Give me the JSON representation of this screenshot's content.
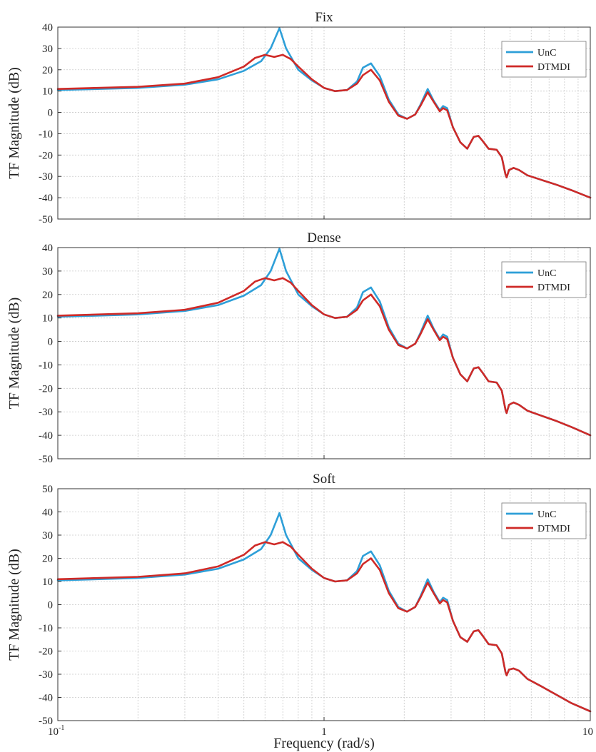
{
  "chart_data": [
    {
      "type": "line",
      "title": "Fix",
      "ylabel": "TF Magnitude (dB)",
      "xlabel": "",
      "xscale": "log",
      "xlim": [
        0.1,
        10
      ],
      "ylim": [
        -50,
        40
      ],
      "yticks": [
        40,
        30,
        20,
        10,
        0,
        -10,
        -20,
        -30,
        -40,
        -50
      ],
      "xticks": [],
      "grid": true,
      "legend": "top-right",
      "series": [
        {
          "name": "UnC",
          "color": "#2e9fd8",
          "x": [
            0.1,
            0.2,
            0.3,
            0.4,
            0.5,
            0.58,
            0.63,
            0.68,
            0.72,
            0.8,
            0.9,
            1.0,
            1.1,
            1.22,
            1.33,
            1.4,
            1.5,
            1.62,
            1.75,
            1.9,
            2.05,
            2.2,
            2.3,
            2.45,
            2.58,
            2.72,
            2.8,
            2.9,
            3.05,
            3.25,
            3.45,
            3.65,
            3.8,
            3.95,
            4.15,
            4.45,
            4.65,
            4.8,
            4.85,
            4.95,
            5.15,
            5.4,
            5.8,
            6.5,
            7.5,
            8.5,
            10.0
          ],
          "y": [
            10.5,
            11.5,
            13,
            15.5,
            19.5,
            24,
            30,
            39.5,
            30,
            20,
            15,
            11.5,
            10,
            10.5,
            14.5,
            21,
            23,
            17,
            6,
            -1,
            -3,
            -1,
            3.5,
            11,
            5.5,
            1,
            3,
            2,
            -7,
            -14,
            -17,
            -11.5,
            -11,
            -13.5,
            -17,
            -17.5,
            -21,
            -29,
            -30.5,
            -27,
            -26,
            -27,
            -29.5,
            -31.5,
            -34,
            -36.5,
            -40
          ]
        },
        {
          "name": "DTMDI",
          "color": "#cf2a27",
          "x": [
            0.1,
            0.2,
            0.3,
            0.4,
            0.5,
            0.55,
            0.6,
            0.65,
            0.7,
            0.75,
            0.8,
            0.9,
            1.0,
            1.1,
            1.22,
            1.33,
            1.4,
            1.5,
            1.62,
            1.75,
            1.9,
            2.05,
            2.2,
            2.3,
            2.45,
            2.58,
            2.72,
            2.8,
            2.9,
            3.05,
            3.25,
            3.45,
            3.65,
            3.8,
            3.95,
            4.15,
            4.45,
            4.65,
            4.8,
            4.85,
            4.95,
            5.15,
            5.4,
            5.8,
            6.5,
            7.5,
            8.5,
            10.0
          ],
          "y": [
            11,
            12,
            13.5,
            16.5,
            21.5,
            25.5,
            27,
            26,
            27,
            25,
            21.5,
            15.5,
            11.5,
            10,
            10.5,
            13.5,
            17.5,
            20,
            15,
            5,
            -1.5,
            -3,
            -1,
            3,
            9.5,
            5,
            0.5,
            2,
            1,
            -7,
            -14,
            -17,
            -11.5,
            -11,
            -13.5,
            -17,
            -17.5,
            -21,
            -29,
            -30.5,
            -27,
            -26,
            -27,
            -29.5,
            -31.5,
            -34,
            -36.5,
            -40
          ]
        }
      ]
    },
    {
      "type": "line",
      "title": "Dense",
      "ylabel": "TF Magnitude (dB)",
      "xlabel": "",
      "xscale": "log",
      "xlim": [
        0.1,
        10
      ],
      "ylim": [
        -50,
        40
      ],
      "yticks": [
        40,
        30,
        20,
        10,
        0,
        -10,
        -20,
        -30,
        -40,
        -50
      ],
      "xticks": [],
      "grid": true,
      "legend": "top-right",
      "series": [
        {
          "name": "UnC",
          "color": "#2e9fd8",
          "x": [
            0.1,
            0.2,
            0.3,
            0.4,
            0.5,
            0.58,
            0.63,
            0.68,
            0.72,
            0.8,
            0.9,
            1.0,
            1.1,
            1.22,
            1.33,
            1.4,
            1.5,
            1.62,
            1.75,
            1.9,
            2.05,
            2.2,
            2.3,
            2.45,
            2.58,
            2.72,
            2.8,
            2.9,
            3.05,
            3.25,
            3.45,
            3.65,
            3.8,
            3.95,
            4.15,
            4.45,
            4.65,
            4.8,
            4.85,
            4.95,
            5.15,
            5.4,
            5.8,
            6.5,
            7.5,
            8.5,
            10.0
          ],
          "y": [
            10.5,
            11.5,
            13,
            15.5,
            19.5,
            24,
            30,
            39.5,
            30,
            20,
            15,
            11.5,
            10,
            10.5,
            14.5,
            21,
            23,
            17,
            6,
            -1,
            -3,
            -1,
            3.5,
            11,
            5.5,
            1,
            3,
            2,
            -7,
            -14,
            -17,
            -11.5,
            -11,
            -13.5,
            -17,
            -17.5,
            -21,
            -29,
            -30.5,
            -27,
            -26,
            -27,
            -29.5,
            -31.5,
            -34,
            -36.5,
            -40
          ]
        },
        {
          "name": "DTMDI",
          "color": "#cf2a27",
          "x": [
            0.1,
            0.2,
            0.3,
            0.4,
            0.5,
            0.55,
            0.6,
            0.65,
            0.7,
            0.75,
            0.8,
            0.9,
            1.0,
            1.1,
            1.22,
            1.33,
            1.4,
            1.5,
            1.62,
            1.75,
            1.9,
            2.05,
            2.2,
            2.3,
            2.45,
            2.58,
            2.72,
            2.8,
            2.9,
            3.05,
            3.25,
            3.45,
            3.65,
            3.8,
            3.95,
            4.15,
            4.45,
            4.65,
            4.8,
            4.85,
            4.95,
            5.15,
            5.4,
            5.8,
            6.5,
            7.5,
            8.5,
            10.0
          ],
          "y": [
            11,
            12,
            13.5,
            16.5,
            21.5,
            25.5,
            27,
            26,
            27,
            25,
            21.5,
            15.5,
            11.5,
            10,
            10.5,
            13.5,
            17.5,
            20,
            15,
            5,
            -1.5,
            -3,
            -1,
            3,
            9.5,
            5,
            0.5,
            2,
            1,
            -7,
            -14,
            -17,
            -11.5,
            -11,
            -13.5,
            -17,
            -17.5,
            -21,
            -29,
            -30.5,
            -27,
            -26,
            -27,
            -29.5,
            -31.5,
            -34,
            -36.5,
            -40
          ]
        }
      ]
    },
    {
      "type": "line",
      "title": "Soft",
      "ylabel": "TF Magnitude (dB)",
      "xlabel": "Frequency (rad/s)",
      "xscale": "log",
      "xlim": [
        0.1,
        10
      ],
      "ylim": [
        -50,
        50
      ],
      "yticks": [
        50,
        40,
        30,
        20,
        10,
        0,
        -10,
        -20,
        -30,
        -40,
        -50
      ],
      "xticks": [
        {
          "base": "10",
          "exp": "-1",
          "value": 0.1
        },
        {
          "base": "1",
          "exp": "",
          "value": 1
        },
        {
          "base": "10",
          "exp": "",
          "value": 10
        }
      ],
      "grid": true,
      "legend": "top-right",
      "series": [
        {
          "name": "UnC",
          "color": "#2e9fd8",
          "x": [
            0.1,
            0.2,
            0.3,
            0.4,
            0.5,
            0.58,
            0.63,
            0.68,
            0.72,
            0.8,
            0.9,
            1.0,
            1.1,
            1.22,
            1.33,
            1.4,
            1.5,
            1.62,
            1.75,
            1.9,
            2.05,
            2.2,
            2.3,
            2.45,
            2.58,
            2.72,
            2.8,
            2.9,
            3.05,
            3.25,
            3.45,
            3.65,
            3.8,
            3.95,
            4.15,
            4.45,
            4.65,
            4.8,
            4.85,
            4.95,
            5.15,
            5.4,
            5.8,
            6.5,
            7.5,
            8.5,
            10.0
          ],
          "y": [
            10.5,
            11.5,
            13,
            15.5,
            19.5,
            24,
            30,
            39.5,
            30,
            20,
            15,
            11.5,
            10,
            10.5,
            14.5,
            21,
            23,
            17,
            6,
            -1,
            -3,
            -1,
            3.5,
            11,
            5.5,
            1,
            3,
            2,
            -7,
            -14,
            -16,
            -11.5,
            -11,
            -13.5,
            -17,
            -17.5,
            -21,
            -29,
            -30.5,
            -28,
            -27.5,
            -28.5,
            -32,
            -35,
            -39,
            -42.5,
            -46
          ]
        },
        {
          "name": "DTMDI",
          "color": "#cf2a27",
          "x": [
            0.1,
            0.2,
            0.3,
            0.4,
            0.5,
            0.55,
            0.6,
            0.65,
            0.7,
            0.75,
            0.8,
            0.9,
            1.0,
            1.1,
            1.22,
            1.33,
            1.4,
            1.5,
            1.62,
            1.75,
            1.9,
            2.05,
            2.2,
            2.3,
            2.45,
            2.58,
            2.72,
            2.8,
            2.9,
            3.05,
            3.25,
            3.45,
            3.65,
            3.8,
            3.95,
            4.15,
            4.45,
            4.65,
            4.8,
            4.85,
            4.95,
            5.15,
            5.4,
            5.8,
            6.5,
            7.5,
            8.5,
            10.0
          ],
          "y": [
            11,
            12,
            13.5,
            16.5,
            21.5,
            25.5,
            27,
            26,
            27,
            25,
            21.5,
            15.5,
            11.5,
            10,
            10.5,
            13.5,
            17.5,
            20,
            15,
            5,
            -1.5,
            -3,
            -1,
            3,
            9.5,
            5,
            0.5,
            2,
            1,
            -7,
            -14,
            -16,
            -11.5,
            -11,
            -13.5,
            -17,
            -17.5,
            -21,
            -29,
            -30.5,
            -28,
            -27.5,
            -28.5,
            -32,
            -35,
            -39,
            -42.5,
            -46
          ]
        }
      ]
    }
  ]
}
